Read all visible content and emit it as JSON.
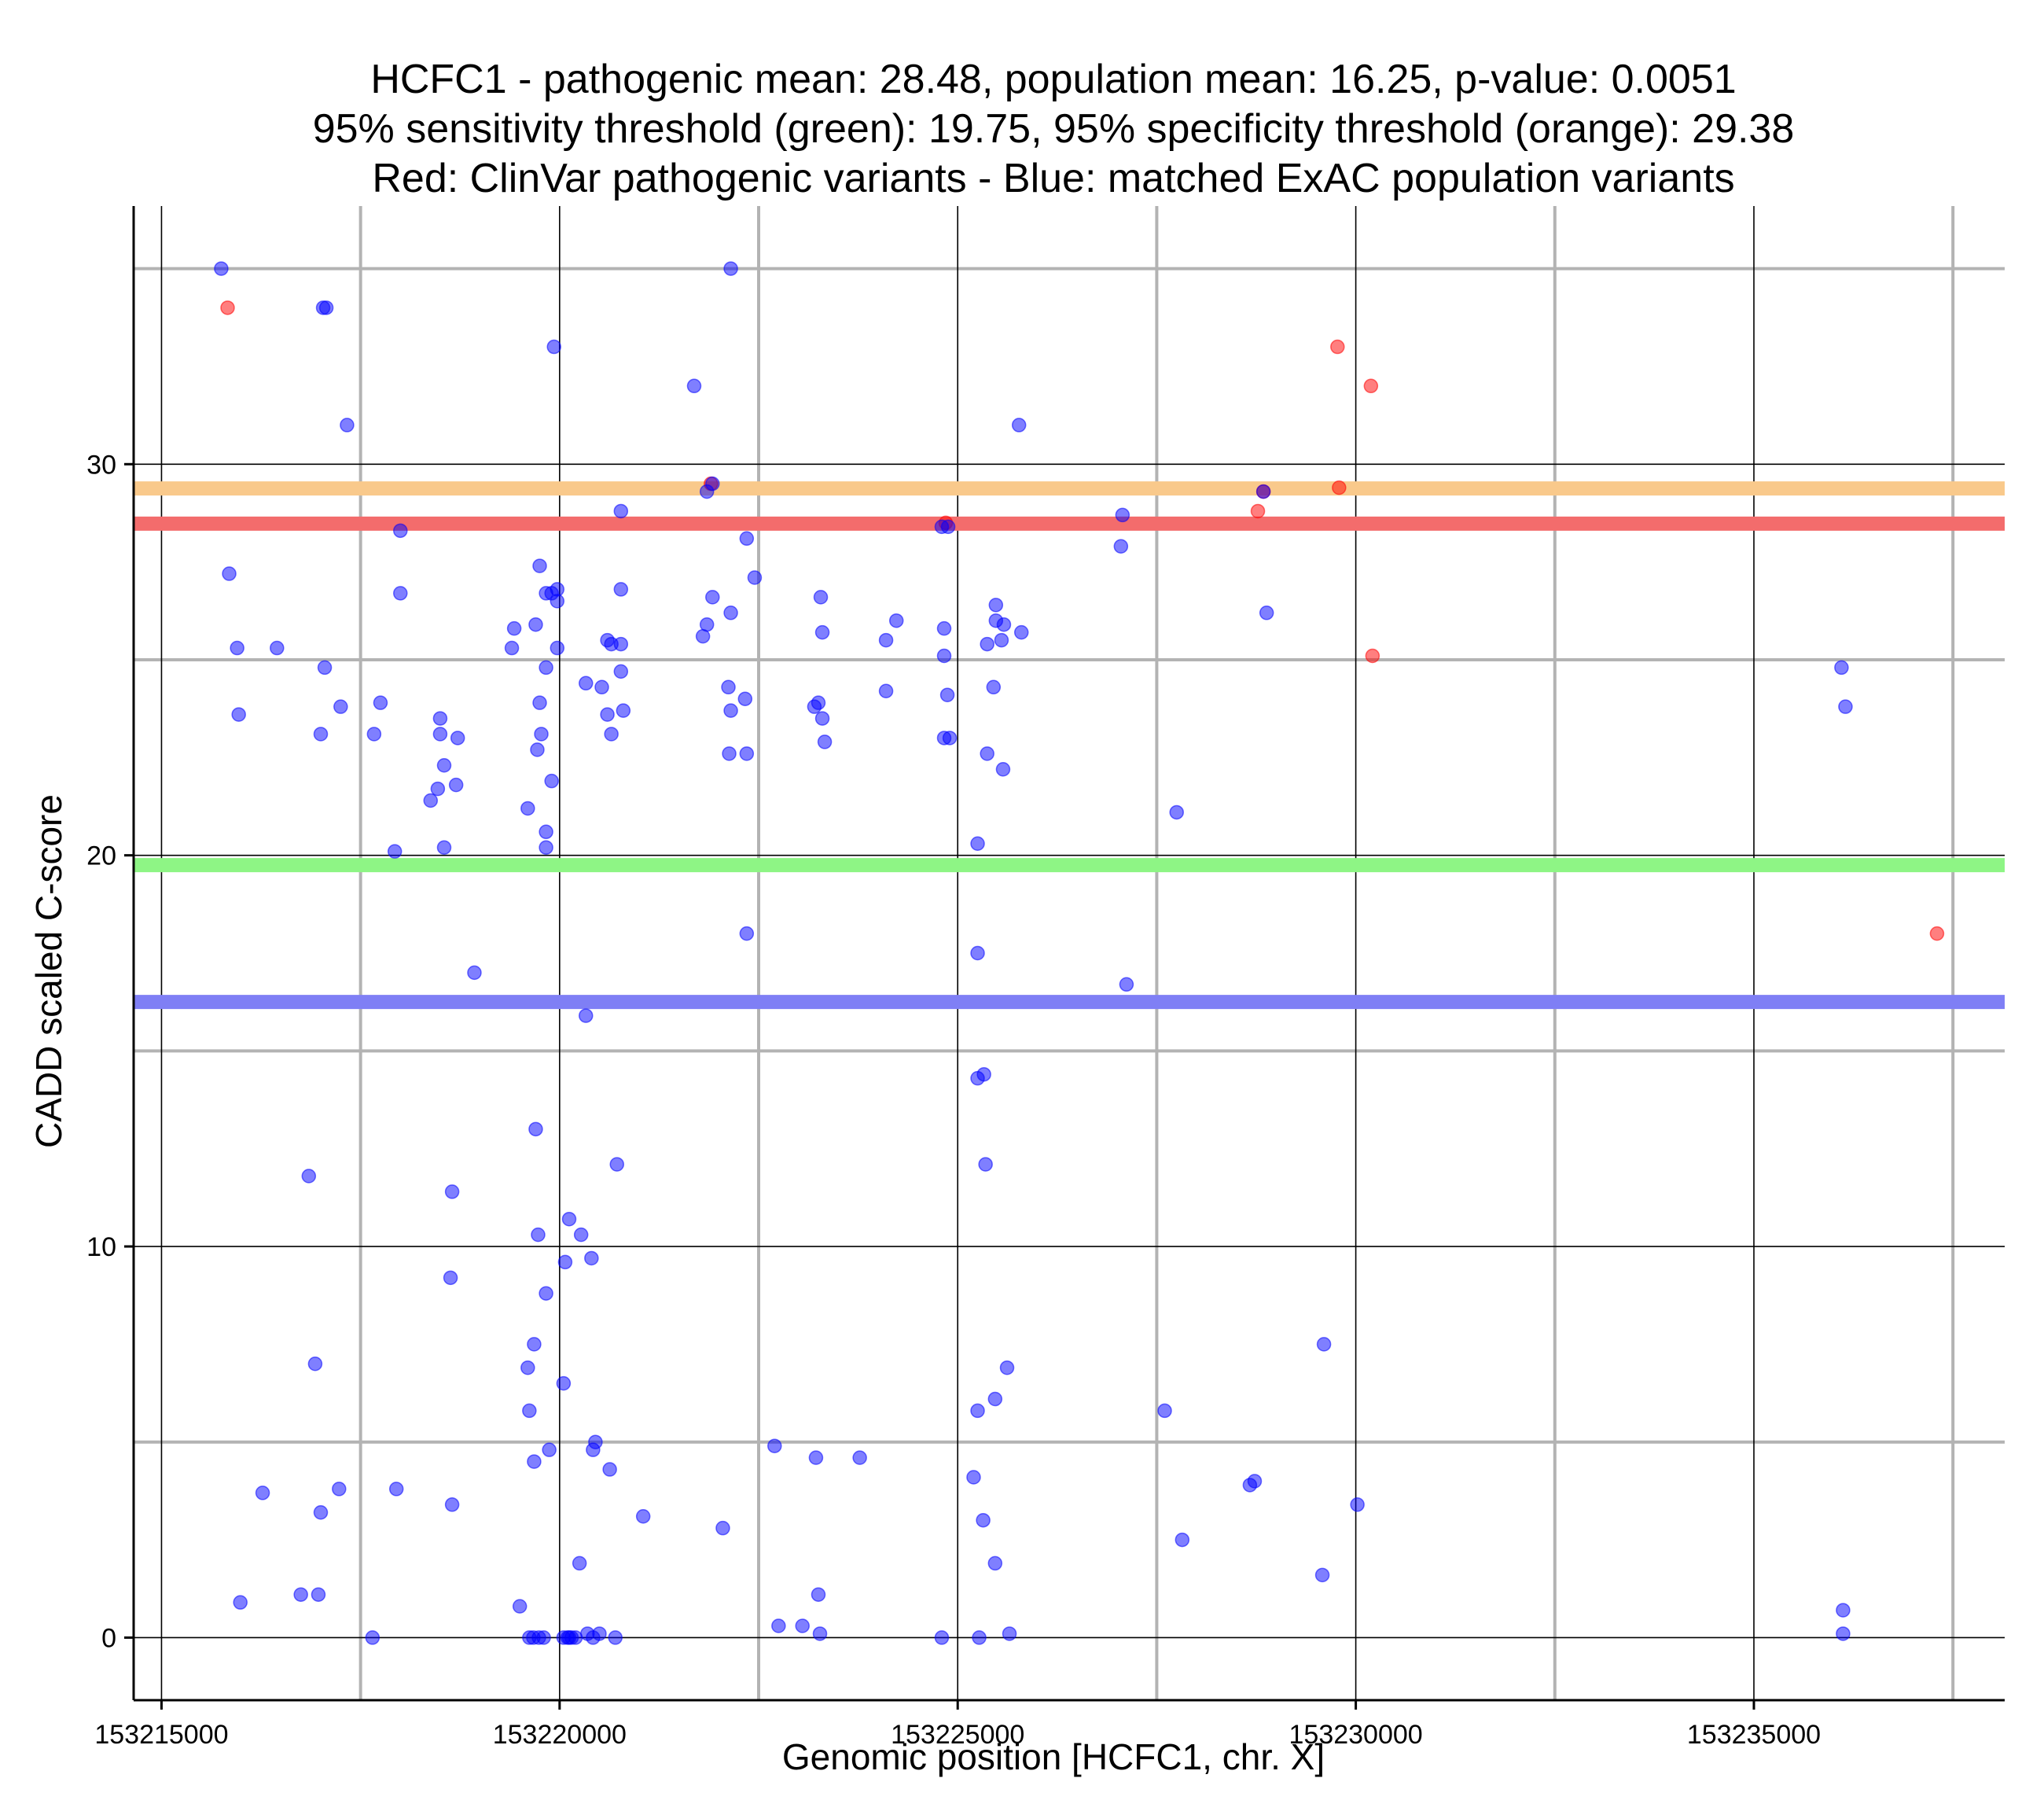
{
  "chart_data": {
    "type": "scatter",
    "title": [
      "HCFC1 - pathogenic mean: 28.48, population mean: 16.25, p-value: 0.0051",
      "95% sensitivity threshold (green): 19.75, 95% specificity threshold (orange): 29.38",
      "Red: ClinVar pathogenic variants - Blue: matched ExAC population variants"
    ],
    "xlabel": "Genomic position [HCFC1, chr. X]",
    "ylabel": "CADD scaled C-score",
    "xlim": [
      153214650,
      153238150
    ],
    "ylim": [
      -1.6,
      36.6
    ],
    "x_major_ticks": [
      153215000,
      153220000,
      153225000,
      153230000,
      153235000
    ],
    "x_tick_labels": [
      "153215000",
      "153220000",
      "153225000",
      "153230000",
      "153235000"
    ],
    "x_minor_ticks": [
      153217500,
      153222500,
      153227500,
      153232500,
      153237500
    ],
    "y_major_ticks": [
      0,
      10,
      20,
      30
    ],
    "y_tick_labels": [
      "0",
      "10",
      "20",
      "30"
    ],
    "y_minor_ticks": [
      5,
      15,
      25,
      35
    ],
    "grid": true,
    "colors": {
      "pathogenic": "#ff0000",
      "population": "#0000ff",
      "pathogenic_mean": "#f36c6c",
      "population_mean": "#7f7ff5",
      "sensitivity": "#8ef585",
      "specificity": "#f9c98b"
    },
    "lines": [
      {
        "name": "pathogenic mean",
        "y": 28.48,
        "color": "#f36c6c"
      },
      {
        "name": "population mean",
        "y": 16.25,
        "color": "#7f7ff5"
      },
      {
        "name": "95% sensitivity threshold",
        "y": 19.75,
        "color": "#8ef585"
      },
      {
        "name": "95% specificity threshold",
        "y": 29.38,
        "color": "#f9c98b"
      }
    ],
    "series": [
      {
        "name": "ClinVar pathogenic variants",
        "color": "#ff0000",
        "points": [
          [
            153215830,
            34
          ],
          [
            153221900,
            29.5
          ],
          [
            153228770,
            28.8
          ],
          [
            153228840,
            29.3
          ],
          [
            153229770,
            33
          ],
          [
            153229790,
            29.4
          ],
          [
            153230190,
            32
          ],
          [
            153230210,
            25.1
          ],
          [
            153237300,
            18
          ],
          [
            153224850,
            28.5
          ]
        ]
      },
      {
        "name": "matched ExAC population variants",
        "color": "#0000ff",
        "points": [
          [
            153215750,
            35
          ],
          [
            153222150,
            35
          ],
          [
            153217030,
            34
          ],
          [
            153217070,
            34
          ],
          [
            153219930,
            33
          ],
          [
            153221690,
            32
          ],
          [
            153217330,
            31
          ],
          [
            153225770,
            31
          ],
          [
            153221850,
            29.3
          ],
          [
            153221920,
            29.5
          ],
          [
            153220770,
            28.8
          ],
          [
            153228840,
            29.3
          ],
          [
            153227070,
            28.7
          ],
          [
            153218000,
            28.3
          ],
          [
            153222350,
            28.1
          ],
          [
            153224800,
            28.4
          ],
          [
            153224880,
            28.4
          ],
          [
            153227050,
            27.9
          ],
          [
            153215850,
            27.2
          ],
          [
            153219750,
            27.4
          ],
          [
            153222450,
            27.1
          ],
          [
            153218000,
            26.7
          ],
          [
            153221920,
            26.6
          ],
          [
            153219830,
            26.7
          ],
          [
            153219900,
            26.7
          ],
          [
            153219970,
            26.8
          ],
          [
            153219970,
            26.5
          ],
          [
            153220770,
            26.8
          ],
          [
            153223280,
            26.6
          ],
          [
            153225480,
            26.4
          ],
          [
            153228880,
            26.2
          ],
          [
            153222150,
            26.2
          ],
          [
            153224230,
            26.0
          ],
          [
            153225480,
            26.0
          ],
          [
            153225580,
            25.9
          ],
          [
            153221850,
            25.9
          ],
          [
            153219700,
            25.9
          ],
          [
            153219430,
            25.8
          ],
          [
            153221800,
            25.6
          ],
          [
            153224830,
            25.8
          ],
          [
            153225800,
            25.7
          ],
          [
            153223300,
            25.7
          ],
          [
            153215950,
            25.3
          ],
          [
            153216450,
            25.3
          ],
          [
            153219400,
            25.3
          ],
          [
            153219970,
            25.3
          ],
          [
            153220600,
            25.5
          ],
          [
            153220650,
            25.4
          ],
          [
            153220770,
            25.4
          ],
          [
            153225370,
            25.4
          ],
          [
            153225550,
            25.5
          ],
          [
            153224100,
            25.5
          ],
          [
            153224830,
            25.1
          ],
          [
            153217050,
            24.8
          ],
          [
            153219830,
            24.8
          ],
          [
            153220770,
            24.7
          ],
          [
            153236100,
            24.8
          ],
          [
            153220330,
            24.4
          ],
          [
            153220530,
            24.3
          ],
          [
            153222120,
            24.3
          ],
          [
            153225450,
            24.3
          ],
          [
            153224100,
            24.2
          ],
          [
            153224870,
            24.1
          ],
          [
            153222330,
            24.0
          ],
          [
            153217250,
            23.8
          ],
          [
            153217750,
            23.9
          ],
          [
            153219750,
            23.9
          ],
          [
            153223200,
            23.8
          ],
          [
            153223250,
            23.9
          ],
          [
            153236150,
            23.8
          ],
          [
            153215970,
            23.6
          ],
          [
            153220600,
            23.6
          ],
          [
            153220800,
            23.7
          ],
          [
            153222150,
            23.7
          ],
          [
            153223300,
            23.5
          ],
          [
            153218500,
            23.5
          ],
          [
            153217000,
            23.1
          ],
          [
            153217670,
            23.1
          ],
          [
            153218500,
            23.1
          ],
          [
            153219770,
            23.1
          ],
          [
            153220650,
            23.1
          ],
          [
            153218720,
            23.0
          ],
          [
            153223330,
            22.9
          ],
          [
            153224830,
            23.0
          ],
          [
            153224900,
            23.0
          ],
          [
            153219720,
            22.7
          ],
          [
            153222130,
            22.6
          ],
          [
            153222350,
            22.6
          ],
          [
            153225370,
            22.6
          ],
          [
            153218550,
            22.3
          ],
          [
            153225570,
            22.2
          ],
          [
            153219900,
            21.9
          ],
          [
            153218700,
            21.8
          ],
          [
            153218470,
            21.7
          ],
          [
            153218380,
            21.4
          ],
          [
            153219600,
            21.2
          ],
          [
            153227750,
            21.1
          ],
          [
            153219830,
            20.6
          ],
          [
            153219830,
            20.2
          ],
          [
            153218550,
            20.2
          ],
          [
            153217930,
            20.1
          ],
          [
            153225250,
            20.3
          ],
          [
            153222350,
            18.0
          ],
          [
            153218930,
            17.0
          ],
          [
            153225250,
            17.5
          ],
          [
            153227120,
            16.7
          ],
          [
            153220330,
            15.9
          ],
          [
            153225250,
            14.3
          ],
          [
            153225330,
            14.4
          ],
          [
            153219700,
            13.0
          ],
          [
            153220720,
            12.1
          ],
          [
            153225350,
            12.1
          ],
          [
            153216850,
            11.8
          ],
          [
            153218650,
            11.4
          ],
          [
            153220120,
            10.7
          ],
          [
            153219730,
            10.3
          ],
          [
            153220270,
            10.3
          ],
          [
            153220070,
            9.6
          ],
          [
            153220400,
            9.7
          ],
          [
            153218630,
            9.2
          ],
          [
            153219830,
            8.8
          ],
          [
            153219680,
            7.5
          ],
          [
            153216930,
            7.0
          ],
          [
            153219600,
            6.9
          ],
          [
            153225620,
            6.9
          ],
          [
            153229600,
            7.5
          ],
          [
            153220050,
            6.5
          ],
          [
            153225470,
            6.1
          ],
          [
            153219620,
            5.8
          ],
          [
            153225250,
            5.8
          ],
          [
            153227600,
            5.8
          ],
          [
            153219870,
            4.8
          ],
          [
            153220420,
            4.8
          ],
          [
            153220450,
            5.0
          ],
          [
            153222700,
            4.9
          ],
          [
            153223220,
            4.6
          ],
          [
            153223770,
            4.6
          ],
          [
            153219680,
            4.5
          ],
          [
            153220630,
            4.3
          ],
          [
            153225200,
            4.1
          ],
          [
            153228670,
            3.9
          ],
          [
            153228730,
            4.0
          ],
          [
            153216270,
            3.7
          ],
          [
            153217230,
            3.8
          ],
          [
            153217950,
            3.8
          ],
          [
            153218650,
            3.4
          ],
          [
            153230020,
            3.4
          ],
          [
            153217000,
            3.2
          ],
          [
            153221050,
            3.1
          ],
          [
            153225320,
            3.0
          ],
          [
            153222050,
            2.8
          ],
          [
            153227820,
            2.5
          ],
          [
            153225470,
            1.9
          ],
          [
            153220250,
            1.9
          ],
          [
            153229580,
            1.6
          ],
          [
            153215990,
            0.9
          ],
          [
            153216750,
            1.1
          ],
          [
            153216970,
            1.1
          ],
          [
            153219500,
            0.8
          ],
          [
            153223250,
            1.1
          ],
          [
            153236120,
            0.7
          ],
          [
            153222750,
            0.3
          ],
          [
            153223050,
            0.3
          ],
          [
            153219670,
            0.0
          ],
          [
            153219740,
            0.0
          ],
          [
            153219800,
            0.0
          ],
          [
            153219620,
            0.0
          ],
          [
            153220100,
            0.0
          ],
          [
            153220150,
            0.0
          ],
          [
            153220200,
            0.0
          ],
          [
            153220050,
            0.0
          ],
          [
            153220120,
            0.0
          ],
          [
            153220350,
            0.1
          ],
          [
            153220420,
            0.0
          ],
          [
            153220500,
            0.1
          ],
          [
            153220700,
            0.0
          ],
          [
            153217650,
            0.0
          ],
          [
            153223270,
            0.1
          ],
          [
            153224800,
            0.0
          ],
          [
            153225270,
            0.0
          ],
          [
            153225650,
            0.1
          ],
          [
            153236120,
            0.1
          ]
        ]
      }
    ]
  }
}
